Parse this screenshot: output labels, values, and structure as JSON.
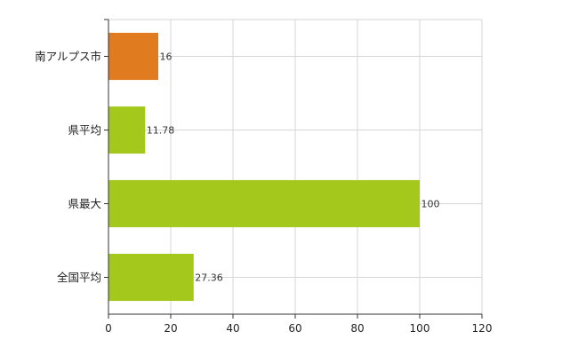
{
  "chart_data": {
    "type": "bar",
    "orientation": "horizontal",
    "categories": [
      "南アルプス市",
      "県平均",
      "県最大",
      "全国平均"
    ],
    "values": [
      16,
      11.78,
      100,
      27.36
    ],
    "data_labels": [
      "16",
      "11.78",
      "100",
      "27.36"
    ],
    "colors": [
      "#e07b20",
      "#a4c81c",
      "#a4c81c",
      "#a4c81c"
    ],
    "xlim": [
      0,
      120
    ],
    "xticks": [
      0,
      20,
      40,
      60,
      80,
      100,
      120
    ],
    "grid": true,
    "legend": "none"
  }
}
